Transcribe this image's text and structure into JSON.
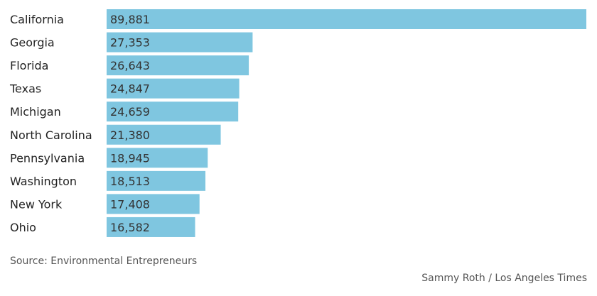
{
  "chart_data": {
    "type": "bar",
    "orientation": "horizontal",
    "categories": [
      "California",
      "Georgia",
      "Florida",
      "Texas",
      "Michigan",
      "North Carolina",
      "Pennsylvania",
      "Washington",
      "New York",
      "Ohio"
    ],
    "values": [
      89881,
      27353,
      26643,
      24847,
      24659,
      21380,
      18945,
      18513,
      17408,
      16582
    ],
    "value_labels": [
      "89,881",
      "27,353",
      "26,643",
      "24,847",
      "24,659",
      "21,380",
      "18,945",
      "18,513",
      "17,408",
      "16,582"
    ],
    "xlim": [
      0,
      89881
    ],
    "bar_color": "#7fc6e0",
    "grid": false,
    "legend": "none"
  },
  "footer": {
    "source": "Source: Environmental Entrepreneurs",
    "credit": "Sammy Roth / Los Angeles Times"
  }
}
